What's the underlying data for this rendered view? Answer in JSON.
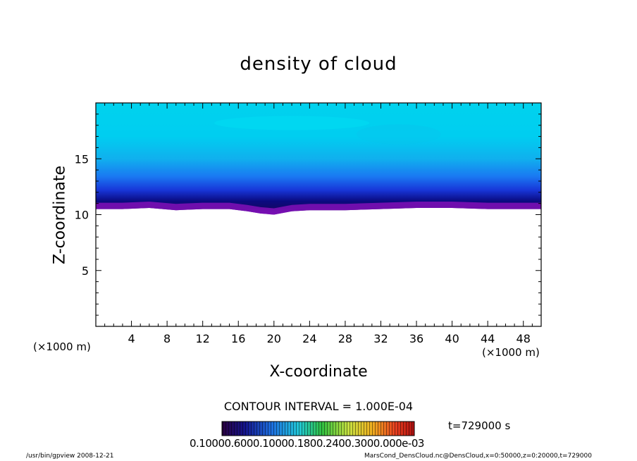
{
  "chart_data": {
    "type": "heatmap",
    "title": "density of cloud",
    "xlabel": "X-coordinate",
    "ylabel": "Z-coordinate",
    "x_unit_left": "(×1000 m)",
    "x_unit_right": "(×1000 m)",
    "x_ticks": [
      4,
      8,
      12,
      16,
      20,
      24,
      28,
      32,
      36,
      40,
      44,
      48
    ],
    "y_ticks": [
      5,
      10,
      15
    ],
    "xlim": [
      0,
      50
    ],
    "ylim": [
      0,
      20
    ],
    "cloud_base_z": [
      10.5,
      10.5,
      10.6,
      10.4,
      10.5,
      10.5,
      10.3,
      10.1,
      10.0,
      10.3,
      10.4,
      10.4,
      10.5,
      10.6,
      10.6,
      10.5,
      10.5
    ],
    "cloud_base_x": [
      0,
      3,
      6,
      9,
      12,
      15,
      17,
      18.5,
      20,
      22,
      24,
      28,
      32,
      36,
      40,
      44,
      50
    ],
    "contour_interval_text": "CONTOUR INTERVAL = 1.000E-04",
    "time_label": "t=729000 s",
    "colorbar_labels": "0.10000.6000.10000.1800.2400.3000.000e-03",
    "colorbar_range": [
      0.0001,
      0.001
    ],
    "colors": {
      "top": "#00d2ee",
      "upper": "#12b4ee",
      "middle": "#1a5ef0",
      "dark": "#0a0a7c",
      "base": "#7a0fb4"
    }
  },
  "footer": {
    "left": "/usr/bin/gpview   2008-12-21",
    "right": "MarsCond_DensCloud.nc@DensCloud,x=0:50000,z=0:20000,t=729000"
  }
}
